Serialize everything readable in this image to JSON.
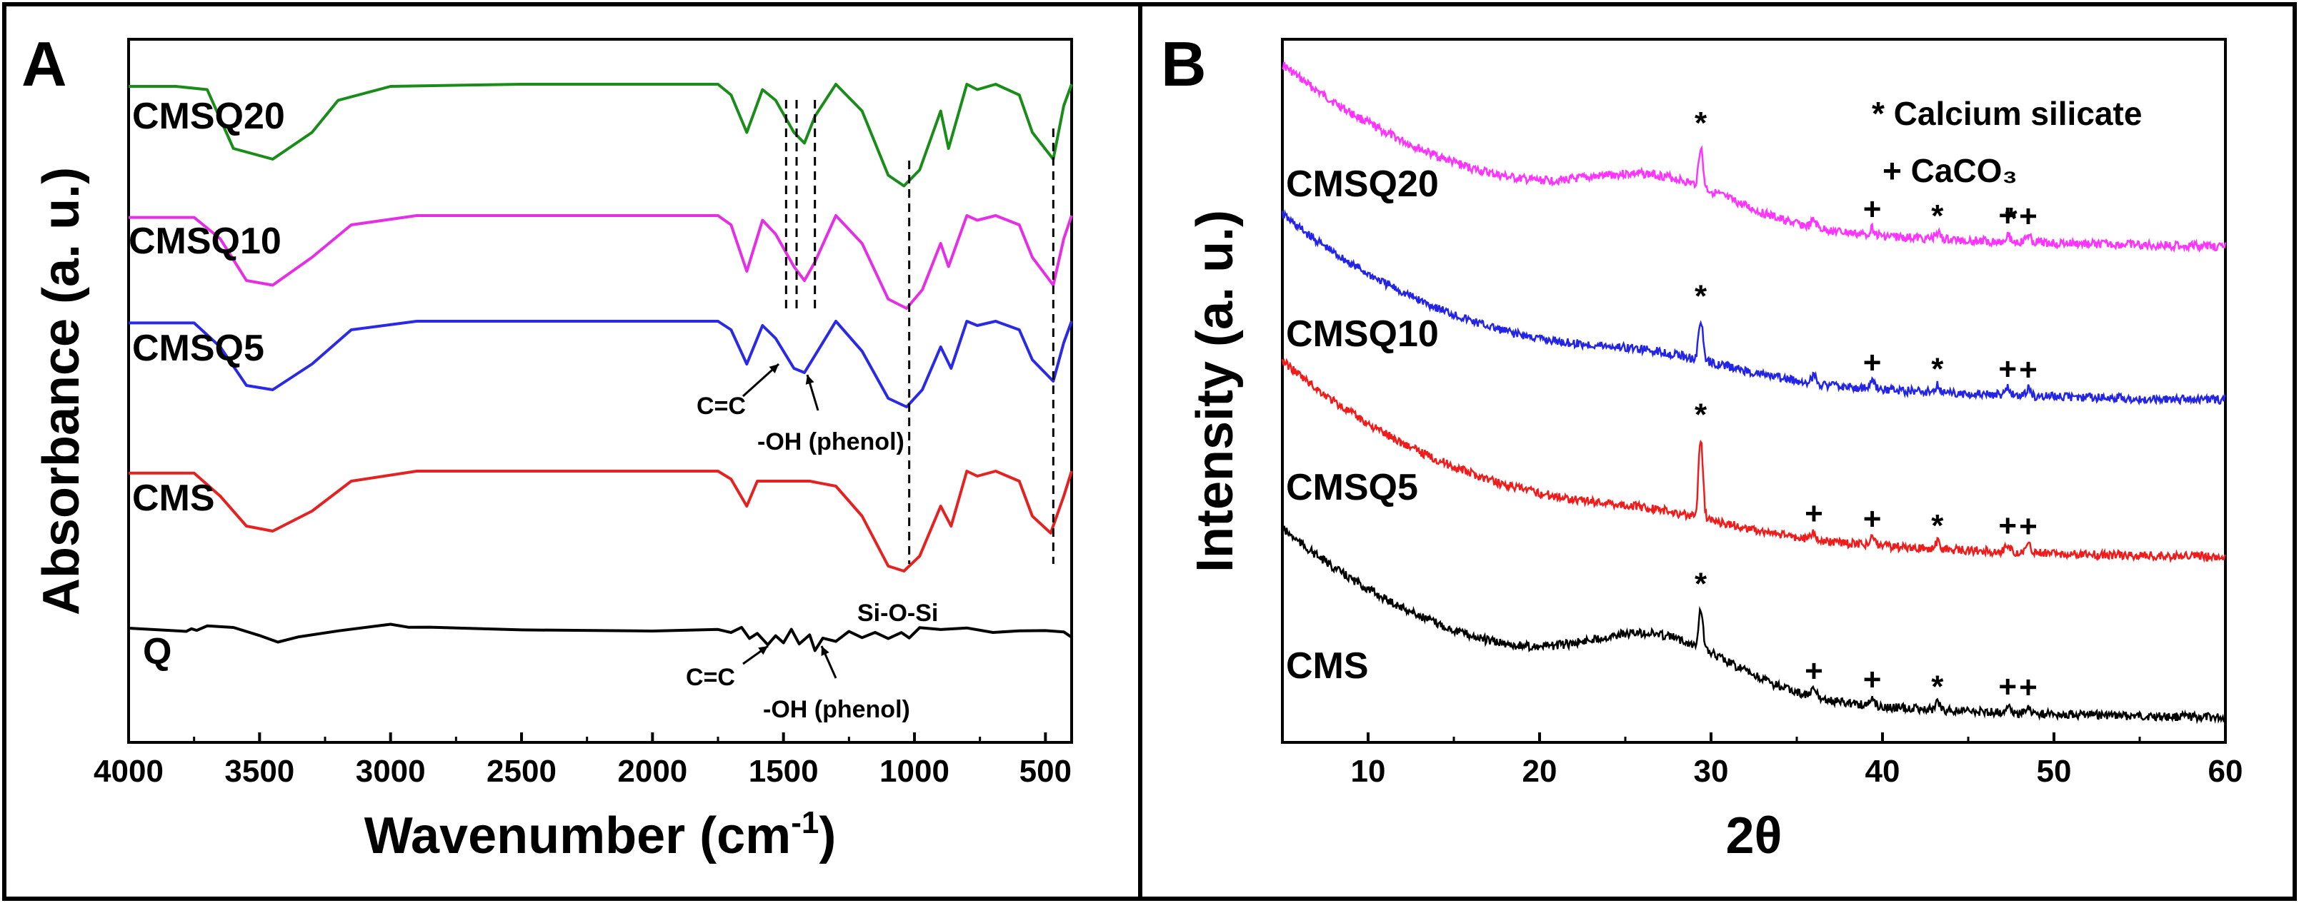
{
  "chart_data": [
    {
      "panel": "A",
      "type": "line",
      "xlabel": "Wavenumber (cm",
      "xlabel_sup": "-1",
      "xlabel_close": ")",
      "ylabel": "Absorbance (a. u.)",
      "xlim": [
        4000,
        400
      ],
      "xticks": [
        4000,
        3500,
        3000,
        2500,
        2000,
        1500,
        1000,
        500
      ],
      "series": [
        {
          "name": "CMSQ20",
          "color": "#1a8c1a",
          "points": [
            [
              4000,
              0.02
            ],
            [
              3820,
              0.02
            ],
            [
              3700,
              0.05
            ],
            [
              3600,
              0.6
            ],
            [
              3450,
              0.7
            ],
            [
              3300,
              0.45
            ],
            [
              3200,
              0.15
            ],
            [
              3000,
              0.02
            ],
            [
              2500,
              0.0
            ],
            [
              1750,
              0.0
            ],
            [
              1700,
              0.1
            ],
            [
              1640,
              0.45
            ],
            [
              1580,
              0.05
            ],
            [
              1530,
              0.15
            ],
            [
              1460,
              0.45
            ],
            [
              1420,
              0.55
            ],
            [
              1380,
              0.3
            ],
            [
              1300,
              0.0
            ],
            [
              1200,
              0.25
            ],
            [
              1100,
              0.85
            ],
            [
              1040,
              0.95
            ],
            [
              980,
              0.8
            ],
            [
              900,
              0.25
            ],
            [
              870,
              0.6
            ],
            [
              800,
              0.0
            ],
            [
              760,
              0.05
            ],
            [
              690,
              0.0
            ],
            [
              600,
              0.1
            ],
            [
              550,
              0.45
            ],
            [
              470,
              0.7
            ],
            [
              430,
              0.2
            ],
            [
              400,
              0.0
            ]
          ]
        },
        {
          "name": "CMSQ10",
          "color": "#e52fe5",
          "points": [
            [
              4000,
              0.02
            ],
            [
              3750,
              0.02
            ],
            [
              3650,
              0.25
            ],
            [
              3550,
              0.7
            ],
            [
              3450,
              0.75
            ],
            [
              3300,
              0.45
            ],
            [
              3150,
              0.1
            ],
            [
              2900,
              0.0
            ],
            [
              1750,
              0.0
            ],
            [
              1700,
              0.1
            ],
            [
              1640,
              0.6
            ],
            [
              1580,
              0.05
            ],
            [
              1530,
              0.2
            ],
            [
              1460,
              0.55
            ],
            [
              1420,
              0.7
            ],
            [
              1380,
              0.5
            ],
            [
              1300,
              0.0
            ],
            [
              1200,
              0.3
            ],
            [
              1100,
              0.9
            ],
            [
              1030,
              1.0
            ],
            [
              970,
              0.8
            ],
            [
              900,
              0.3
            ],
            [
              870,
              0.55
            ],
            [
              800,
              0.0
            ],
            [
              760,
              0.05
            ],
            [
              690,
              0.0
            ],
            [
              600,
              0.1
            ],
            [
              550,
              0.45
            ],
            [
              470,
              0.75
            ],
            [
              430,
              0.25
            ],
            [
              400,
              0.0
            ]
          ]
        },
        {
          "name": "CMSQ5",
          "color": "#2a2ae6",
          "points": [
            [
              4000,
              0.02
            ],
            [
              3750,
              0.02
            ],
            [
              3650,
              0.3
            ],
            [
              3550,
              0.75
            ],
            [
              3450,
              0.8
            ],
            [
              3300,
              0.5
            ],
            [
              3150,
              0.1
            ],
            [
              2900,
              0.0
            ],
            [
              1750,
              0.0
            ],
            [
              1700,
              0.1
            ],
            [
              1640,
              0.5
            ],
            [
              1580,
              0.05
            ],
            [
              1530,
              0.2
            ],
            [
              1460,
              0.55
            ],
            [
              1420,
              0.6
            ],
            [
              1380,
              0.4
            ],
            [
              1300,
              0.0
            ],
            [
              1200,
              0.35
            ],
            [
              1100,
              0.9
            ],
            [
              1030,
              1.0
            ],
            [
              970,
              0.8
            ],
            [
              900,
              0.3
            ],
            [
              860,
              0.55
            ],
            [
              800,
              0.0
            ],
            [
              760,
              0.05
            ],
            [
              690,
              0.0
            ],
            [
              600,
              0.1
            ],
            [
              550,
              0.45
            ],
            [
              470,
              0.7
            ],
            [
              430,
              0.25
            ],
            [
              400,
              0.0
            ]
          ]
        },
        {
          "name": "CMS",
          "color": "#e52222",
          "points": [
            [
              4000,
              0.02
            ],
            [
              3750,
              0.02
            ],
            [
              3650,
              0.25
            ],
            [
              3550,
              0.55
            ],
            [
              3450,
              0.6
            ],
            [
              3300,
              0.4
            ],
            [
              3150,
              0.1
            ],
            [
              2900,
              0.0
            ],
            [
              1750,
              0.0
            ],
            [
              1700,
              0.08
            ],
            [
              1640,
              0.35
            ],
            [
              1600,
              0.1
            ],
            [
              1500,
              0.1
            ],
            [
              1400,
              0.1
            ],
            [
              1300,
              0.15
            ],
            [
              1200,
              0.45
            ],
            [
              1100,
              0.95
            ],
            [
              1040,
              1.0
            ],
            [
              980,
              0.85
            ],
            [
              900,
              0.35
            ],
            [
              860,
              0.55
            ],
            [
              800,
              0.0
            ],
            [
              760,
              0.05
            ],
            [
              690,
              0.0
            ],
            [
              600,
              0.1
            ],
            [
              550,
              0.45
            ],
            [
              480,
              0.62
            ],
            [
              430,
              0.25
            ],
            [
              400,
              0.0
            ]
          ]
        },
        {
          "name": "Q",
          "color": "#000000",
          "points": [
            [
              4000,
              0.0
            ],
            [
              3780,
              0.02
            ],
            [
              3760,
              -0.05
            ],
            [
              3740,
              0.05
            ],
            [
              3700,
              0.0
            ],
            [
              3600,
              0.05
            ],
            [
              3500,
              0.2
            ],
            [
              3430,
              0.3
            ],
            [
              3350,
              0.15
            ],
            [
              3200,
              0.05
            ],
            [
              3000,
              -0.05
            ],
            [
              2930,
              0.05
            ],
            [
              2850,
              0.0
            ],
            [
              2500,
              0.0
            ],
            [
              2000,
              0.0
            ],
            [
              1750,
              0.0
            ],
            [
              1700,
              0.15
            ],
            [
              1660,
              0.05
            ],
            [
              1630,
              0.3
            ],
            [
              1600,
              0.1
            ],
            [
              1560,
              0.35
            ],
            [
              1530,
              0.15
            ],
            [
              1500,
              0.4
            ],
            [
              1470,
              0.1
            ],
            [
              1440,
              0.45
            ],
            [
              1400,
              0.15
            ],
            [
              1380,
              0.5
            ],
            [
              1350,
              0.2
            ],
            [
              1300,
              0.35
            ],
            [
              1250,
              0.15
            ],
            [
              1200,
              0.3
            ],
            [
              1150,
              0.1
            ],
            [
              1100,
              0.2
            ],
            [
              1050,
              0.05
            ],
            [
              1020,
              0.25
            ],
            [
              980,
              0.05
            ],
            [
              900,
              0.1
            ],
            [
              800,
              0.0
            ],
            [
              700,
              0.05
            ],
            [
              600,
              0.0
            ],
            [
              500,
              0.05
            ],
            [
              430,
              0.15
            ],
            [
              400,
              0.3
            ]
          ]
        }
      ],
      "dashed_lines_x": [
        1490,
        1450,
        1380,
        1020,
        470
      ],
      "annotations": [
        {
          "text": "C=C",
          "x": 1500
        },
        {
          "text": "-OH (phenol)",
          "x": 1380
        },
        {
          "text": "Si-O-Si",
          "x": 1020
        },
        {
          "text": "C=C",
          "x": 1500
        },
        {
          "text": "-OH (phenol)",
          "x": 1380
        }
      ]
    },
    {
      "panel": "B",
      "type": "line",
      "xlabel": "2θ",
      "ylabel": "Intensity (a. u.)",
      "xlim": [
        5,
        60
      ],
      "xticks": [
        10,
        20,
        30,
        40,
        50,
        60
      ],
      "legend": [
        {
          "symbol": "*",
          "label": "Calcium silicate"
        },
        {
          "symbol": "+",
          "label": "CaCO₃"
        }
      ],
      "series": [
        {
          "name": "CMSQ20",
          "color": "#ff33ff",
          "peaks_star": [
            29.4,
            43.2,
            47.5
          ],
          "peaks_plus": [
            39.4,
            47.3,
            48.5
          ]
        },
        {
          "name": "CMSQ10",
          "color": "#2424e6",
          "peaks_star": [
            29.4,
            43.2
          ],
          "peaks_plus": [
            39.4,
            47.3,
            48.5
          ]
        },
        {
          "name": "CMSQ5",
          "color": "#f01c1c",
          "peaks_star": [
            29.4,
            43.2
          ],
          "peaks_plus": [
            36.0,
            39.4,
            47.3,
            48.5
          ]
        },
        {
          "name": "CMS",
          "color": "#000000",
          "peaks_star": [
            29.4,
            43.2
          ],
          "peaks_plus": [
            36.0,
            39.4,
            47.3,
            48.5
          ]
        }
      ]
    }
  ]
}
